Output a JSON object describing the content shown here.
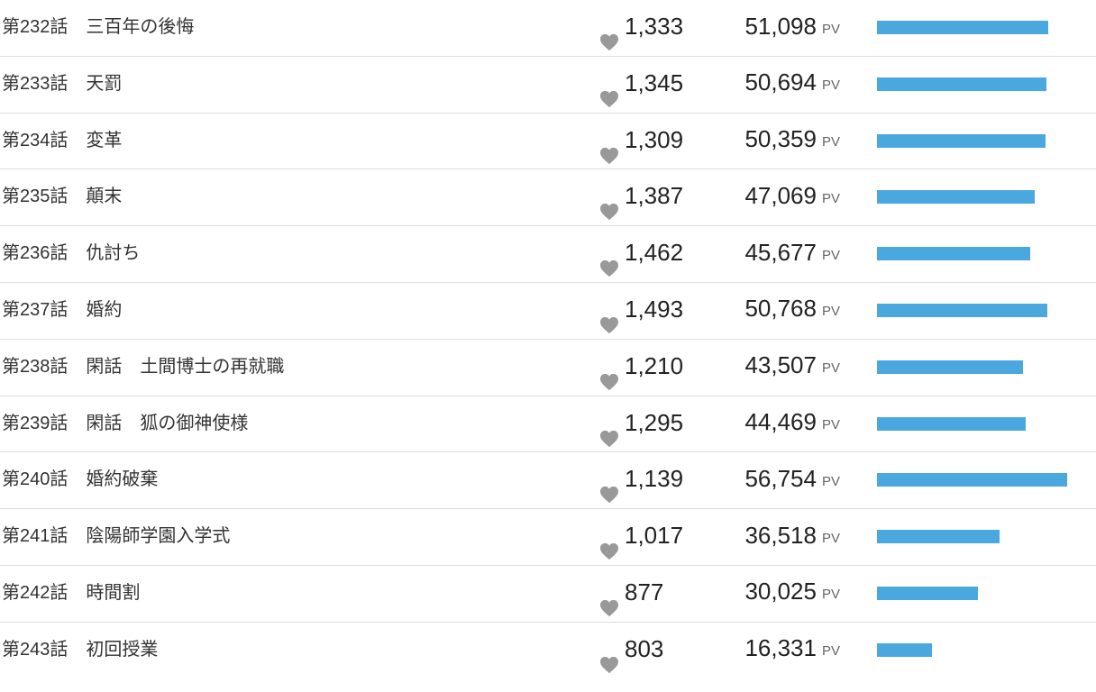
{
  "pv_unit": "PV",
  "bar_color": "#4aa8de",
  "bar_scale_max": 56754,
  "episodes": [
    {
      "title": "第232話　三百年の後悔",
      "favorites": "1,333",
      "pv": "51,098",
      "pv_value": 51098
    },
    {
      "title": "第233話　天罰",
      "favorites": "1,345",
      "pv": "50,694",
      "pv_value": 50694
    },
    {
      "title": "第234話　変革",
      "favorites": "1,309",
      "pv": "50,359",
      "pv_value": 50359
    },
    {
      "title": "第235話　顛末",
      "favorites": "1,387",
      "pv": "47,069",
      "pv_value": 47069
    },
    {
      "title": "第236話　仇討ち",
      "favorites": "1,462",
      "pv": "45,677",
      "pv_value": 45677
    },
    {
      "title": "第237話　婚約",
      "favorites": "1,493",
      "pv": "50,768",
      "pv_value": 50768
    },
    {
      "title": "第238話　閑話　土間博士の再就職",
      "favorites": "1,210",
      "pv": "43,507",
      "pv_value": 43507
    },
    {
      "title": "第239話　閑話　狐の御神使様",
      "favorites": "1,295",
      "pv": "44,469",
      "pv_value": 44469
    },
    {
      "title": "第240話　婚約破棄",
      "favorites": "1,139",
      "pv": "56,754",
      "pv_value": 56754
    },
    {
      "title": "第241話　陰陽師学園入学式",
      "favorites": "1,017",
      "pv": "36,518",
      "pv_value": 36518
    },
    {
      "title": "第242話　時間割",
      "favorites": "877",
      "pv": "30,025",
      "pv_value": 30025
    },
    {
      "title": "第243話　初回授業",
      "favorites": "803",
      "pv": "16,331",
      "pv_value": 16331
    }
  ]
}
